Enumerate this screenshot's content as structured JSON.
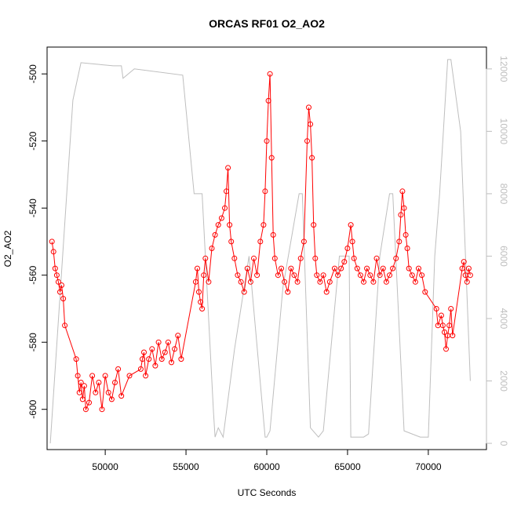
{
  "chart_data": {
    "type": "line",
    "title": "ORCAS RF01 O2_AO2",
    "xlabel": "UTC Seconds",
    "ylabel": "O2_AO2",
    "xlim": [
      46400,
      73600
    ],
    "ylim": [
      -612,
      -492
    ],
    "y2lim": [
      -200,
      12700
    ],
    "x_ticks": [
      50000,
      55000,
      60000,
      65000,
      70000
    ],
    "y_ticks": [
      -600,
      -580,
      -560,
      -540,
      -520,
      -500
    ],
    "y2_ticks": [
      0,
      2000,
      4000,
      6000,
      8000,
      10000,
      12000
    ],
    "grid": false,
    "legend": "none",
    "colors": {
      "series_o2": "#ff0000",
      "series_altitude": "#bebebe",
      "axes": "#000000"
    },
    "series": [
      {
        "key": "o2",
        "style": "line+circles",
        "color": "#ff0000",
        "x": [
          46700,
          46800,
          46900,
          47000,
          47100,
          47200,
          47300,
          47400,
          47500,
          48200,
          48300,
          48400,
          48500,
          48600,
          48700,
          48800,
          49000,
          49200,
          49400,
          49600,
          49800,
          50000,
          50200,
          50400,
          50600,
          50800,
          51000,
          51500,
          52200,
          52300,
          52400,
          52500,
          52700,
          52900,
          53100,
          53300,
          53500,
          53700,
          53900,
          54100,
          54300,
          54500,
          54700,
          55600,
          55700,
          55800,
          55900,
          56000,
          56100,
          56200,
          56400,
          56600,
          56800,
          57000,
          57200,
          57400,
          57500,
          57600,
          57700,
          57800,
          58000,
          58200,
          58400,
          58600,
          58800,
          59000,
          59200,
          59400,
          59600,
          59800,
          59900,
          60000,
          60100,
          60200,
          60300,
          60400,
          60500,
          60700,
          60900,
          61100,
          61300,
          61500,
          61700,
          61900,
          62100,
          62300,
          62500,
          62600,
          62700,
          62800,
          62900,
          63000,
          63100,
          63300,
          63500,
          63700,
          63900,
          64200,
          64400,
          64600,
          64800,
          65000,
          65200,
          65300,
          65400,
          65600,
          65800,
          66000,
          66200,
          66400,
          66600,
          66800,
          67000,
          67200,
          67400,
          67600,
          67800,
          68000,
          68200,
          68300,
          68400,
          68500,
          68600,
          68700,
          68800,
          69000,
          69200,
          69400,
          69600,
          69800,
          70500,
          70600,
          70800,
          70900,
          71000,
          71100,
          71200,
          71300,
          71400,
          71500,
          72100,
          72200,
          72300,
          72400,
          72500,
          72600
        ],
        "y": [
          -550,
          -553,
          -558,
          -560,
          -562,
          -565,
          -563,
          -567,
          -575,
          -585,
          -590,
          -595,
          -592,
          -597,
          -593,
          -600,
          -598,
          -590,
          -595,
          -592,
          -600,
          -590,
          -595,
          -597,
          -592,
          -588,
          -596,
          -590,
          -588,
          -585,
          -583,
          -590,
          -585,
          -582,
          -587,
          -580,
          -585,
          -583,
          -580,
          -586,
          -582,
          -578,
          -585,
          -562,
          -558,
          -565,
          -568,
          -570,
          -560,
          -555,
          -562,
          -552,
          -548,
          -545,
          -543,
          -540,
          -535,
          -528,
          -545,
          -550,
          -555,
          -560,
          -562,
          -565,
          -558,
          -562,
          -555,
          -560,
          -550,
          -545,
          -535,
          -520,
          -508,
          -500,
          -525,
          -548,
          -555,
          -560,
          -558,
          -562,
          -565,
          -558,
          -560,
          -562,
          -555,
          -550,
          -520,
          -510,
          -515,
          -525,
          -545,
          -555,
          -560,
          -562,
          -560,
          -565,
          -562,
          -558,
          -560,
          -558,
          -556,
          -552,
          -545,
          -550,
          -555,
          -558,
          -560,
          -562,
          -558,
          -560,
          -562,
          -555,
          -560,
          -558,
          -562,
          -560,
          -558,
          -555,
          -550,
          -542,
          -535,
          -540,
          -548,
          -552,
          -558,
          -560,
          -562,
          -558,
          -560,
          -565,
          -570,
          -575,
          -572,
          -575,
          -577,
          -582,
          -578,
          -575,
          -570,
          -578,
          -558,
          -556,
          -560,
          -562,
          -558,
          -560
        ]
      },
      {
        "key": "altitude",
        "style": "line",
        "color": "#bebebe",
        "x": [
          46600,
          48000,
          48500,
          49500,
          50500,
          51000,
          51100,
          51800,
          54800,
          55500,
          56000,
          56700,
          56800,
          57000,
          57300,
          58000,
          58900,
          59900,
          60000,
          60200,
          61000,
          62000,
          62200,
          62700,
          63200,
          63500,
          64500,
          65100,
          65200,
          66000,
          66300,
          67000,
          67600,
          67800,
          68500,
          69500,
          70000,
          70400,
          70700,
          71200,
          71400,
          72000,
          72600
        ],
        "y": [
          0,
          11000,
          12200,
          12150,
          12100,
          12100,
          11700,
          12000,
          11800,
          8000,
          8000,
          1000,
          200,
          500,
          200,
          3000,
          6000,
          200,
          200,
          400,
          5000,
          8000,
          8000,
          500,
          200,
          400,
          6000,
          6000,
          200,
          200,
          300,
          6000,
          8000,
          8000,
          400,
          200,
          200,
          6000,
          8000,
          12300,
          12300,
          10000,
          2000
        ]
      }
    ]
  }
}
